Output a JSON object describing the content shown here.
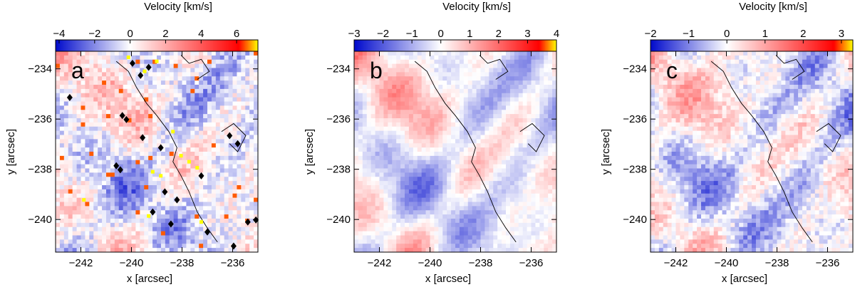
{
  "chart_data": [
    {
      "type": "heatmap",
      "panel_label": "a",
      "title": "Velocity [km/s]",
      "colorbar_ticks": [
        "-4",
        "-2",
        "0",
        "2",
        "4",
        "6"
      ],
      "colorbar_range": [
        -4.2,
        7.2
      ],
      "xlabel": "x [arcsec]",
      "ylabel": "y [arcsec]",
      "xlim": [
        -243,
        -235
      ],
      "ylim": [
        -241.3,
        -233.3
      ],
      "x_ticks": [
        -242,
        -240,
        -238,
        -236
      ],
      "x_tick_labels": [
        "-242",
        "-240",
        "-238",
        "-236"
      ],
      "y_ticks": [
        -234,
        -236,
        -238,
        -240
      ],
      "y_tick_labels": [
        "-234",
        "-236",
        "-238",
        "-240"
      ],
      "value_range": [
        -3.5,
        6.5
      ],
      "grid": false,
      "markers": "black diamonds and yellow squares along contour"
    },
    {
      "type": "heatmap",
      "panel_label": "b",
      "title": "Velocity [km/s]",
      "colorbar_ticks": [
        "-3",
        "-2",
        "-1",
        "0",
        "1",
        "2",
        "3",
        "4"
      ],
      "colorbar_range": [
        -3.0,
        4.0
      ],
      "xlabel": "x [arcsec]",
      "ylabel": "y [arcsec]",
      "xlim": [
        -243,
        -235
      ],
      "ylim": [
        -241.3,
        -233.3
      ],
      "x_ticks": [
        -242,
        -240,
        -238,
        -236
      ],
      "x_tick_labels": [
        "-242",
        "-240",
        "-238",
        "-236"
      ],
      "y_ticks": [
        -234,
        -236,
        -238,
        -240
      ],
      "y_tick_labels": [
        "-234",
        "-236",
        "-238",
        "-240"
      ],
      "value_range": [
        -2.5,
        2.5
      ],
      "grid": false
    },
    {
      "type": "heatmap",
      "panel_label": "c",
      "title": "Velocity [km/s]",
      "colorbar_ticks": [
        "-2",
        "-1",
        "0",
        "1",
        "2",
        "3"
      ],
      "colorbar_range": [
        -2.0,
        3.3
      ],
      "xlabel": "x [arcsec]",
      "ylabel": "y [arcsec]",
      "xlim": [
        -243,
        -235
      ],
      "ylim": [
        -241.3,
        -233.3
      ],
      "x_ticks": [
        -242,
        -240,
        -238,
        -236
      ],
      "x_tick_labels": [
        "-242",
        "-240",
        "-238",
        "-236"
      ],
      "y_ticks": [
        -234,
        -236,
        -238,
        -240
      ],
      "y_tick_labels": [
        "-234",
        "-236",
        "-238",
        "-240"
      ],
      "value_range": [
        -1.6,
        1.6
      ],
      "grid": false
    }
  ]
}
